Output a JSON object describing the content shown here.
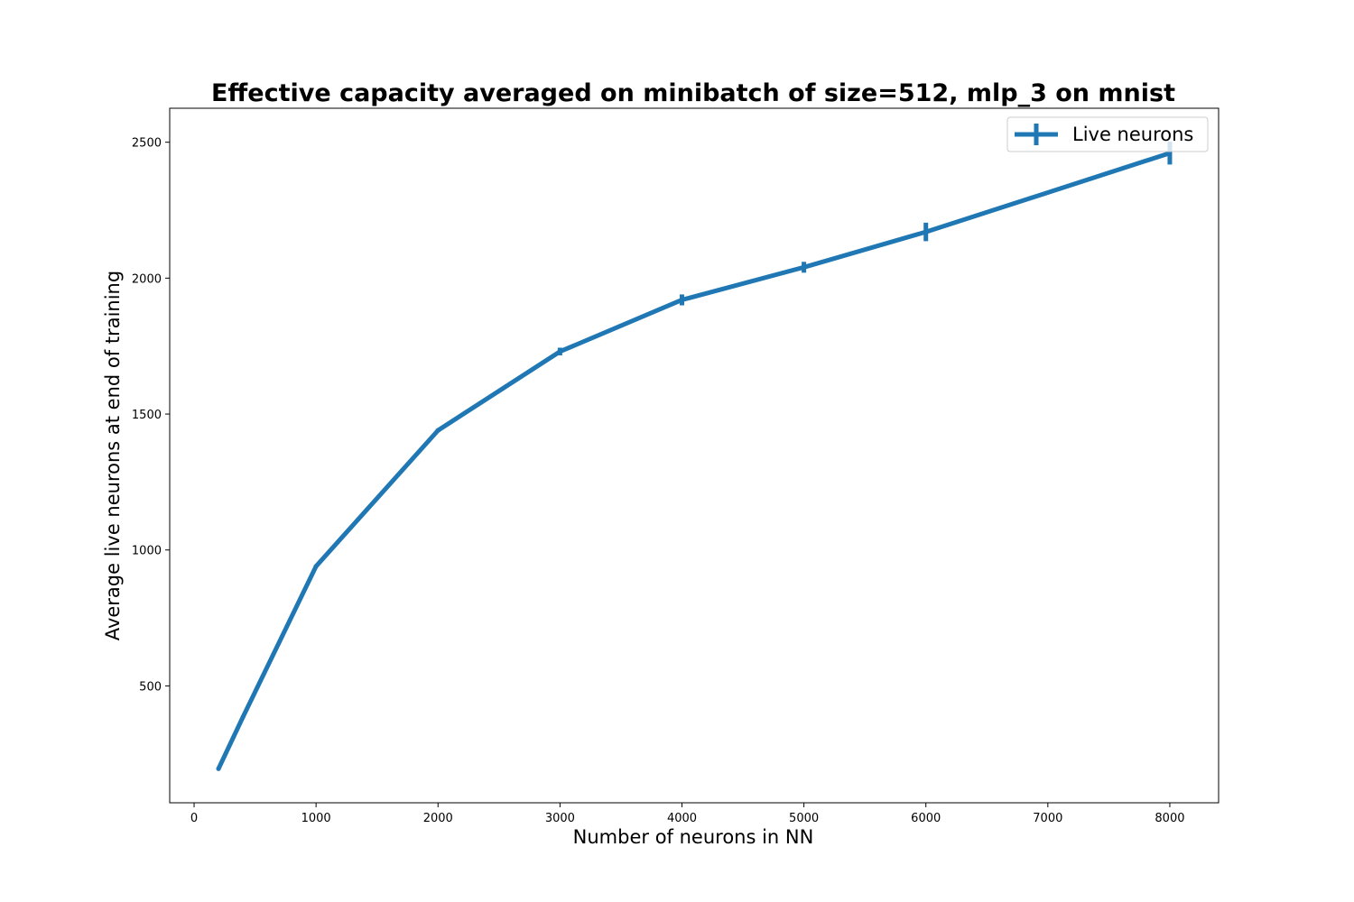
{
  "chart_data": {
    "type": "line",
    "title": "Effective capacity averaged on minibatch of size=512, mlp_3 on mnist",
    "xlabel": "Number of neurons in NN",
    "ylabel": "Average live neurons at end of training",
    "xlim": [
      -200,
      8400
    ],
    "ylim": [
      70,
      2625
    ],
    "xticks": [
      0,
      1000,
      2000,
      3000,
      4000,
      5000,
      6000,
      7000,
      8000
    ],
    "yticks": [
      500,
      1000,
      1500,
      2000,
      2500
    ],
    "grid": false,
    "legend_position": "top-right",
    "series": [
      {
        "name": "Live neurons",
        "color": "#1f77b4",
        "x": [
          200,
          400,
          1000,
          2000,
          3000,
          4000,
          5000,
          6000,
          8000
        ],
        "y": [
          195,
          385,
          940,
          1440,
          1730,
          1920,
          2040,
          2170,
          2460
        ],
        "yerr": [
          3,
          3,
          4,
          6,
          14,
          20,
          20,
          34,
          42
        ]
      }
    ]
  }
}
